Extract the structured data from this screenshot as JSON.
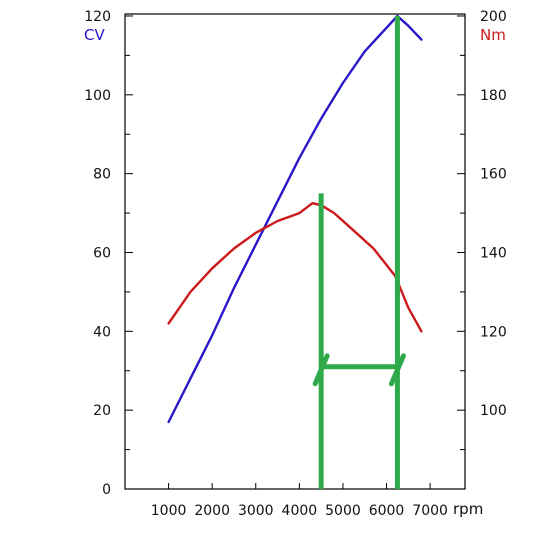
{
  "chart_data": {
    "type": "line",
    "x": {
      "label": "rpm",
      "range": [
        0,
        7800
      ],
      "ticks": [
        1000,
        2000,
        3000,
        4000,
        5000,
        6000,
        7000
      ]
    },
    "y_left": {
      "label": "CV",
      "range": [
        0,
        120.5
      ],
      "ticks": [
        0,
        20,
        40,
        60,
        80,
        100,
        120
      ],
      "minor_step": 10
    },
    "y_right": {
      "label": "Nm",
      "range": [
        80,
        200.5
      ],
      "ticks": [
        100,
        120,
        140,
        160,
        180,
        200
      ],
      "minor_step": 10
    },
    "series": [
      {
        "axis": "left",
        "color": "#2a18c8",
        "points": [
          [
            1000,
            17
          ],
          [
            1500,
            28
          ],
          [
            2000,
            39
          ],
          [
            2500,
            51
          ],
          [
            3000,
            62
          ],
          [
            3500,
            73
          ],
          [
            4000,
            84
          ],
          [
            4500,
            94
          ],
          [
            5000,
            103
          ],
          [
            5500,
            111
          ],
          [
            6000,
            117
          ],
          [
            6250,
            120
          ],
          [
            6500,
            117.5
          ],
          [
            6800,
            114
          ]
        ]
      },
      {
        "axis": "right",
        "color": "#cc1a1a",
        "points": [
          [
            1000,
            122
          ],
          [
            1500,
            130
          ],
          [
            2000,
            136
          ],
          [
            2500,
            141
          ],
          [
            3000,
            145
          ],
          [
            3500,
            148
          ],
          [
            4000,
            150
          ],
          [
            4300,
            152.5
          ],
          [
            4500,
            152
          ],
          [
            4800,
            150
          ],
          [
            5200,
            146
          ],
          [
            5700,
            141
          ],
          [
            6200,
            134
          ],
          [
            6500,
            126
          ],
          [
            6800,
            120
          ]
        ]
      }
    ],
    "annotations": [
      {
        "type": "vline",
        "x": 4500,
        "y_top_left": 75,
        "color": "#2eaa4a"
      },
      {
        "type": "vline",
        "x": 6250,
        "y_top_left": 120,
        "color": "#2eaa4a"
      },
      {
        "type": "hline",
        "x_from": 4500,
        "x_to": 6250,
        "y_left": 31,
        "color": "#2eaa4a"
      }
    ]
  }
}
